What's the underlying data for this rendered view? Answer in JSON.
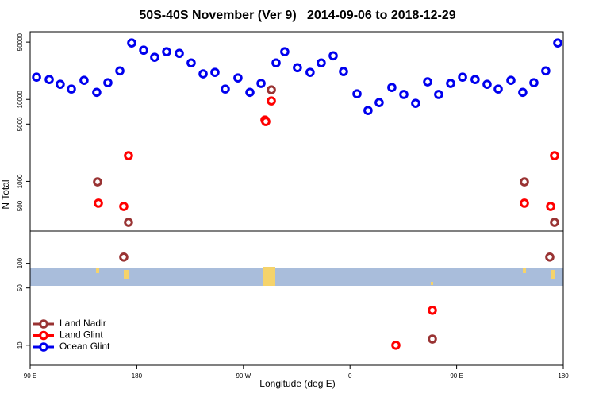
{
  "chart_data": {
    "type": "scatter",
    "title": "50S-40S November (Ver 9)   2014-09-06 to 2018-12-29",
    "x_label": "Longitude (deg E)",
    "y_label": "N Total",
    "xlim": [
      90,
      540
    ],
    "xticks": [
      {
        "value": 90,
        "label": "90 E"
      },
      {
        "value": 180,
        "label": "180"
      },
      {
        "value": 270,
        "label": "90 W"
      },
      {
        "value": 360,
        "label": "0"
      },
      {
        "value": 450,
        "label": "90 E"
      },
      {
        "value": 540,
        "label": "180"
      }
    ],
    "ylim": [
      5.7,
      67000
    ],
    "y_log": true,
    "yticks": [
      10,
      50,
      100,
      500,
      1000,
      5000,
      10000,
      50000
    ],
    "legend": "lower left",
    "series": [
      {
        "name": "Land Nadir",
        "color": "#993333",
        "x": [
          146.9,
          173,
          169,
          293.6,
          429.5,
          507.2,
          532.6,
          528.6
        ],
        "values": [
          986,
          316,
          119,
          13100,
          11.9,
          986,
          316,
          119
        ]
      },
      {
        "name": "Land Glint",
        "color": "#ff0000",
        "x": [
          147.6,
          169,
          173,
          288.2,
          288.9,
          293.6,
          398.7,
          429.5,
          507.2,
          529.3,
          532.6
        ],
        "values": [
          541,
          494,
          2060,
          5610,
          5370,
          9590,
          10,
          26.7,
          541,
          494,
          2060
        ]
      },
      {
        "name": "Ocean Glint",
        "color": "#0000ee",
        "x": [
          95.4,
          106.1,
          115.4,
          124.8,
          135.5,
          146.2,
          155.6,
          165.7,
          175.7,
          185.8,
          195.1,
          205.2,
          215.9,
          225.9,
          236,
          246,
          254.7,
          265.4,
          275.5,
          284.9,
          297.6,
          304.9,
          315.6,
          326.3,
          335.7,
          345.8,
          354.5,
          365.9,
          375.2,
          384.6,
          395.3,
          405.4,
          415.4,
          425.5,
          434.8,
          444.9,
          455,
          465.6,
          475.7,
          485.1,
          495.8,
          505.8,
          515.2,
          525.2,
          535.3
        ],
        "values": [
          18700,
          17500,
          15300,
          13400,
          17100,
          12200,
          16000,
          22300,
          48800,
          39900,
          32700,
          38200,
          36500,
          27900,
          20500,
          21400,
          13400,
          18300,
          12200,
          15700,
          27900,
          38200,
          24400,
          21400,
          27900,
          34100,
          21900,
          11700,
          7330,
          9160,
          14000,
          11500,
          8960,
          16400,
          11500,
          15700,
          18700,
          17500,
          15300,
          13400,
          17100,
          12200,
          16000,
          22300,
          48800
        ]
      }
    ]
  }
}
